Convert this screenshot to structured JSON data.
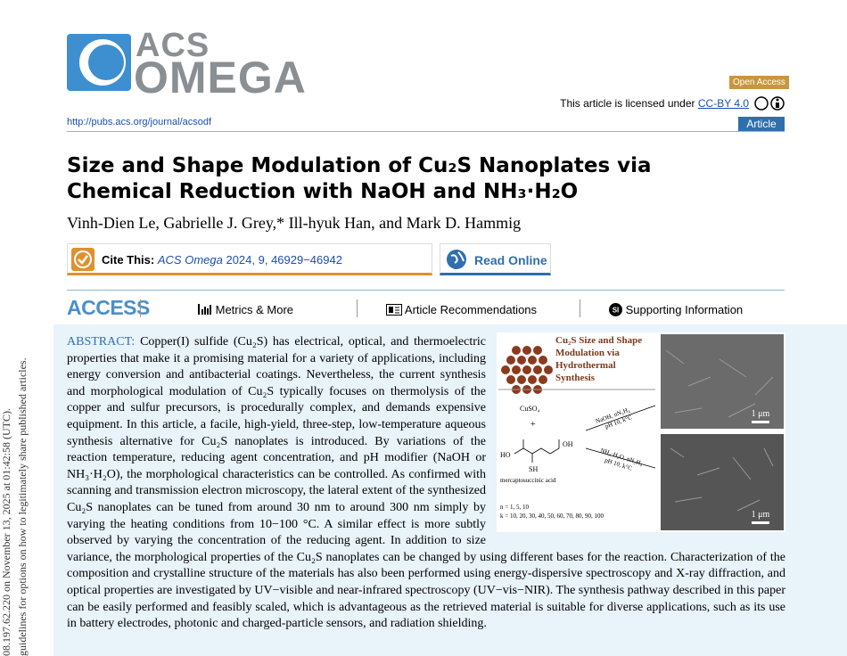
{
  "logo": {
    "top": "ACS",
    "bottom": "OMEGA"
  },
  "badges": {
    "open_access": "Open Access",
    "article": "Article"
  },
  "license": {
    "text": "This article is licensed under",
    "link": "CC-BY 4.0"
  },
  "journal_url": "http://pubs.acs.org/journal/acsodf",
  "title": "Size and Shape Modulation of Cu₂S Nanoplates via Chemical Reduction with NaOH and NH₃·H₂O",
  "authors": "Vinh-Dien Le, Gabrielle J. Grey,* Ill-hyuk Han, and Mark D. Hammig",
  "cite": {
    "label": "Cite This:",
    "journal": "ACS Omega",
    "details": "2024, 9, 46929−46942"
  },
  "read_online": "Read Online",
  "access": {
    "label": "ACCESS",
    "metrics": "Metrics & More",
    "recommendations": "Article Recommendations",
    "supporting": "Supporting Information"
  },
  "abstract": {
    "label": "ABSTRACT:",
    "text": "Copper(I) sulfide (Cu₂S) has electrical, optical, and thermoelectric properties that make it a promising material for a variety of applications, including energy conversion and antibacterial coatings. Nevertheless, the current synthesis and morphological modulation of Cu₂S typically focuses on thermolysis of the copper and sulfur precursors, is procedurally complex, and demands expensive equipment. In this article, a facile, high-yield, three-step, low-temperature aqueous synthesis alternative for Cu₂S nanoplates is introduced. By variations of the reaction temperature, reducing agent concentration, and pH modifier (NaOH or NH₃·H₂O), the morphological characteristics can be controlled. As confirmed with scanning and transmission electron microscopy, the lateral extent of the synthesized Cu₂S nanoplates can be tuned from around 30 nm to around 300 nm simply by varying the heating conditions from 10−100 °C. A similar effect is more subtly observed by varying the concentration of the reducing agent. In addition to size variance, the morphological properties of the Cu₂S nanoplates can be changed by using different bases for the reaction. Characterization of the composition and crystalline structure of the materials has also been performed using energy-dispersive spectroscopy and X-ray diffraction, and optical properties are investigated by UV−visible and near-infrared spectroscopy (UV−vis−NIR). The synthesis pathway described in this paper can be easily performed and feasibly scaled, which is advantageous as the retrieved material is suitable for diverse applications, such as its use in battery electrodes, photonic and charged-particle sensors, and radiation shielding."
  },
  "figure": {
    "title": "Cu₂S Size and Shape Modulation via Hydrothermal Synthesis",
    "reagent": "CuSO₄",
    "plus": "+",
    "acid": "mercaptosuccinic acid",
    "ho": "HO",
    "oh": "OH",
    "sh": "SH",
    "n": "n = 1, 5, 10",
    "k": "k = 10, 20, 30, 40, 50, 60, 70, 80, 90, 100",
    "route1": "NaOH, nN₂H₄",
    "route1_cond": "pH 10, k°C",
    "route2": "NH₃·H₂O, nN₂H₄",
    "route2_cond": "pH 10, k°C",
    "scale1": "1 μm",
    "scale2": "1 μm"
  },
  "margin": {
    "line1": "08.197.62.220 on November 13, 2025 at 01:42:58 (UTC).",
    "line2": "guidelines for options on how to legitimately share published articles."
  }
}
